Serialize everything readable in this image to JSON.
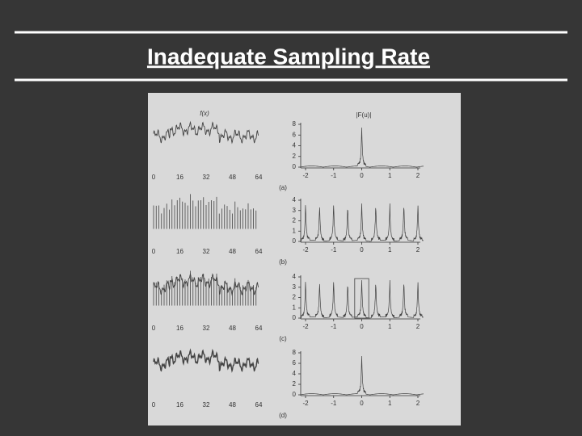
{
  "header": {
    "title": "Inadequate Sampling Rate"
  },
  "figure": {
    "left_label": "f(x)",
    "right_label": "|F(u)|",
    "left_xticks": [
      0,
      16,
      32,
      48,
      64
    ],
    "right_xticks": [
      -2,
      -1,
      0,
      1,
      2
    ],
    "panels": [
      {
        "caption": "(a)",
        "yticks": [
          0,
          2,
          4,
          6,
          8
        ]
      },
      {
        "caption": "(b)",
        "yticks": [
          0,
          1,
          2,
          3,
          4
        ]
      },
      {
        "caption": "(c)",
        "yticks": [
          0,
          1,
          2,
          3,
          4
        ]
      },
      {
        "caption": "(d)",
        "yticks": [
          0,
          2,
          4,
          6,
          8
        ]
      }
    ]
  }
}
